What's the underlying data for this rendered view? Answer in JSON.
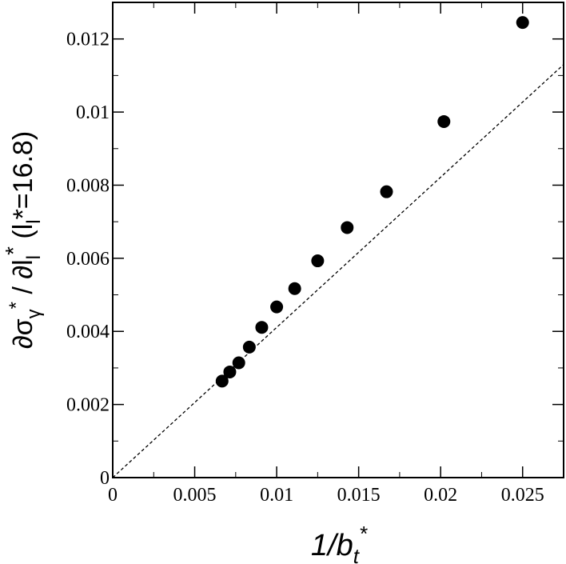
{
  "chart_data": {
    "type": "scatter",
    "title": "",
    "xlabel": {
      "main": "1/b",
      "sub": "t",
      "sup": "*"
    },
    "ylabel": {
      "part1": "∂σ",
      "sub1": "γ",
      "sup1": "*",
      "part2": " / ∂l",
      "sub2": "l",
      "sup2": "*",
      "part3": " (l",
      "sub3": "l",
      "part4": "*=16.8)"
    },
    "xlim": [
      0,
      0.0275
    ],
    "ylim": [
      0,
      0.013
    ],
    "xticks": [
      0,
      0.005,
      0.01,
      0.015,
      0.02,
      0.025
    ],
    "xtick_labels": [
      "0",
      "0.005",
      "0.01",
      "0.015",
      "0.02",
      "0.025"
    ],
    "yticks": [
      0,
      0.002,
      0.004,
      0.006,
      0.008,
      0.01,
      0.012
    ],
    "ytick_labels": [
      "0",
      "0.002",
      "0.004",
      "0.006",
      "0.008",
      "0.01",
      "0.012"
    ],
    "grid": false,
    "series": [
      {
        "marker": "filled-circle",
        "color": "#000000",
        "x": [
          0.00667,
          0.00714,
          0.00769,
          0.00833,
          0.00909,
          0.01,
          0.0111,
          0.0125,
          0.0143,
          0.0167,
          0.0202,
          0.025
        ],
        "y": [
          0.00264,
          0.00289,
          0.00314,
          0.00357,
          0.00411,
          0.00467,
          0.00517,
          0.00593,
          0.00684,
          0.00782,
          0.00974,
          0.01245
        ]
      },
      {
        "style": "dashed-line",
        "color": "#000000",
        "x": [
          0,
          0.0275
        ],
        "y": [
          0,
          0.0113
        ]
      }
    ]
  }
}
